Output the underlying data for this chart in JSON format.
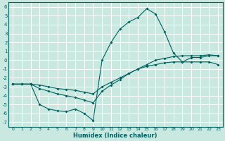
{
  "xlabel": "Humidex (Indice chaleur)",
  "bg_color": "#c8e8e0",
  "line_color": "#006060",
  "grid_color": "#ffffff",
  "xlim": [
    -0.5,
    23.5
  ],
  "ylim": [
    -7.5,
    6.5
  ],
  "xticks": [
    0,
    1,
    2,
    3,
    4,
    5,
    6,
    7,
    8,
    9,
    10,
    11,
    12,
    13,
    14,
    15,
    16,
    17,
    18,
    19,
    20,
    21,
    22,
    23
  ],
  "yticks": [
    -7,
    -6,
    -5,
    -4,
    -3,
    -2,
    -1,
    0,
    1,
    2,
    3,
    4,
    5,
    6
  ],
  "line_peak_x": [
    0,
    1,
    2,
    3,
    4,
    5,
    6,
    7,
    8,
    9,
    10,
    11,
    12,
    13,
    14,
    15,
    16,
    17,
    18,
    19,
    20,
    21,
    22,
    23
  ],
  "line_peak_y": [
    -2.7,
    -2.7,
    -2.7,
    -5.0,
    -5.5,
    -5.7,
    -5.8,
    -5.5,
    -6.0,
    -6.8,
    0.0,
    2.0,
    3.5,
    4.3,
    4.8,
    5.8,
    5.2,
    3.2,
    0.8,
    -0.2,
    0.3,
    0.3,
    0.5,
    0.5
  ],
  "line_mid_x": [
    0,
    1,
    2,
    3,
    4,
    5,
    6,
    7,
    8,
    9,
    10,
    11,
    12,
    13,
    14,
    15,
    16,
    17,
    18,
    19,
    20,
    21,
    22,
    23
  ],
  "line_mid_y": [
    -2.7,
    -2.7,
    -2.7,
    -3.2,
    -3.5,
    -3.8,
    -4.0,
    -4.2,
    -4.5,
    -4.8,
    -3.5,
    -2.8,
    -2.2,
    -1.5,
    -1.0,
    -0.5,
    0.0,
    0.2,
    0.4,
    0.5,
    0.5,
    0.5,
    0.6,
    0.5
  ],
  "line_flat_x": [
    0,
    1,
    2,
    3,
    4,
    5,
    6,
    7,
    8,
    9,
    10,
    11,
    12,
    13,
    14,
    15,
    16,
    17,
    18,
    19,
    20,
    21,
    22,
    23
  ],
  "line_flat_y": [
    -2.7,
    -2.7,
    -2.7,
    -2.8,
    -3.0,
    -3.2,
    -3.3,
    -3.4,
    -3.6,
    -3.8,
    -3.0,
    -2.5,
    -2.0,
    -1.5,
    -1.0,
    -0.7,
    -0.5,
    -0.3,
    -0.2,
    -0.2,
    -0.2,
    -0.2,
    -0.2,
    -0.5
  ]
}
